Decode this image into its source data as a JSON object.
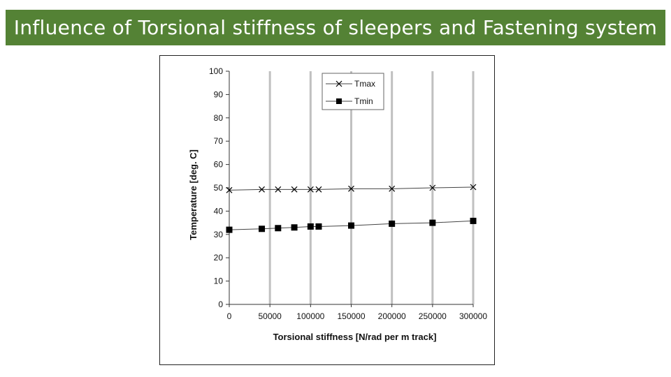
{
  "slide": {
    "title": "Influence of Torsional stiffness of sleepers and Fastening system"
  },
  "colors": {
    "title_bar": "#548235",
    "grid": "#c0c0c0",
    "series_line": "#444444",
    "marker": "#000000"
  },
  "chart_data": {
    "type": "line",
    "title": "",
    "xlabel": "Torsional stiffness [N/rad per m track]",
    "ylabel": "Temperature [deg. C]",
    "xlim": [
      0,
      300000
    ],
    "ylim": [
      0,
      100
    ],
    "x_ticks": [
      "0",
      "50000",
      "100000",
      "150000",
      "200000",
      "250000",
      "300000"
    ],
    "y_ticks": [
      "0",
      "10",
      "20",
      "30",
      "40",
      "50",
      "60",
      "70",
      "80",
      "90",
      "100"
    ],
    "grid": "vertical",
    "legend": "top-center",
    "x": [
      0,
      40000,
      60000,
      80000,
      100000,
      110000,
      150000,
      200000,
      250000,
      300000
    ],
    "series": [
      {
        "name": "Tmax",
        "marker": "x",
        "values": [
          49.0,
          49.3,
          49.3,
          49.3,
          49.3,
          49.3,
          49.6,
          49.6,
          50.0,
          50.3
        ]
      },
      {
        "name": "Tmin",
        "marker": "square",
        "values": [
          32.0,
          32.4,
          32.7,
          33.0,
          33.4,
          33.4,
          33.8,
          34.6,
          35.0,
          35.8
        ]
      }
    ]
  }
}
